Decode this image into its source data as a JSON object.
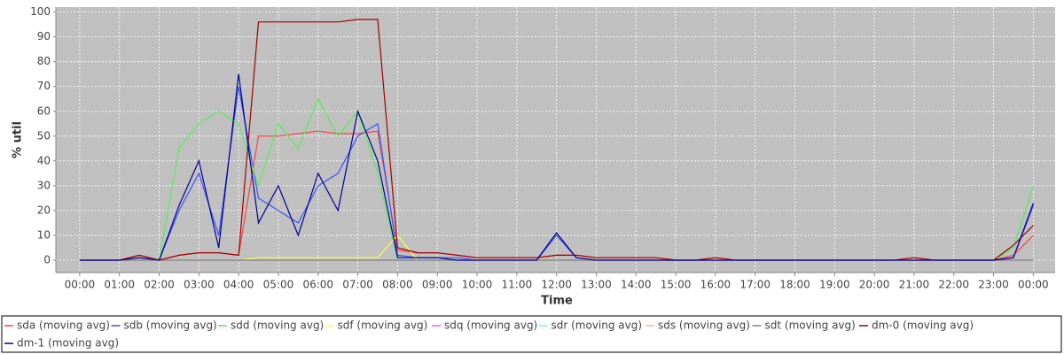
{
  "chart_data": {
    "type": "line",
    "x_label": "Time",
    "y_label": "% util",
    "x": [
      0,
      0.5,
      1,
      1.5,
      2,
      2.5,
      3,
      3.5,
      4,
      4.5,
      5,
      5.5,
      6,
      6.5,
      7,
      7.5,
      8,
      8.5,
      9,
      9.5,
      10,
      10.5,
      11,
      11.5,
      12,
      12.5,
      13,
      13.5,
      14,
      14.5,
      15,
      15.5,
      16,
      16.5,
      17,
      17.5,
      18,
      18.5,
      19,
      19.5,
      20,
      20.5,
      21,
      21.5,
      22,
      22.5,
      23,
      23.5,
      24
    ],
    "series": [
      {
        "name": "sda (moving avg)",
        "color": "#ff4040",
        "values": [
          0,
          0,
          0,
          2,
          0,
          2,
          3,
          3,
          2,
          50,
          50,
          51,
          52,
          51,
          51,
          52,
          4,
          3,
          3,
          2,
          1,
          1,
          1,
          1,
          2,
          2,
          1,
          1,
          1,
          1,
          0,
          0,
          1,
          0,
          0,
          0,
          0,
          0,
          0,
          0,
          0,
          0,
          1,
          0,
          0,
          0,
          0,
          2,
          10
        ]
      },
      {
        "name": "sdb (moving avg)",
        "color": "#3a50ff",
        "values": [
          0,
          0,
          0,
          1,
          0,
          20,
          35,
          10,
          70,
          25,
          20,
          15,
          30,
          35,
          50,
          55,
          2,
          1,
          1,
          1,
          0,
          0,
          0,
          0,
          10,
          1,
          0,
          0,
          0,
          0,
          0,
          0,
          0,
          0,
          0,
          0,
          0,
          0,
          0,
          0,
          0,
          0,
          0,
          0,
          0,
          0,
          0,
          1,
          22
        ]
      },
      {
        "name": "sdd (moving avg)",
        "color": "#55ee55",
        "values": [
          0,
          0,
          0,
          0,
          0,
          45,
          55,
          60,
          55,
          30,
          55,
          45,
          65,
          50,
          60,
          35,
          0,
          0,
          0,
          0,
          0,
          0,
          0,
          0,
          0,
          0,
          0,
          0,
          0,
          0,
          0,
          0,
          0,
          0,
          0,
          0,
          0,
          0,
          0,
          0,
          0,
          0,
          0,
          0,
          0,
          0,
          0,
          5,
          30
        ]
      },
      {
        "name": "sdf (moving avg)",
        "color": "#ffff40",
        "values": [
          0,
          0,
          0,
          0,
          0,
          0,
          0,
          0,
          0,
          1,
          1,
          1,
          1,
          1,
          1,
          1,
          10,
          0,
          0,
          0,
          0,
          0,
          0,
          0,
          0,
          0,
          0,
          0,
          0,
          0,
          0,
          0,
          0,
          0,
          0,
          0,
          0,
          0,
          0,
          0,
          0,
          0,
          0,
          0,
          0,
          0,
          0,
          0,
          0
        ]
      },
      {
        "name": "sdq (moving avg)",
        "color": "#ff55ff",
        "values": [
          0,
          0,
          0,
          0,
          0,
          0,
          0,
          0,
          0,
          0,
          0,
          0,
          0,
          0,
          0,
          0,
          0,
          0,
          0,
          0,
          0,
          0,
          0,
          0,
          0,
          0,
          0,
          0,
          0,
          0,
          0,
          0,
          0,
          0,
          0,
          0,
          0,
          0,
          0,
          0,
          0,
          0,
          0,
          0,
          0,
          0,
          0,
          0,
          0
        ]
      },
      {
        "name": "sdr (moving avg)",
        "color": "#55ffff",
        "values": [
          0,
          0,
          0,
          0,
          0,
          0,
          0,
          0,
          0,
          0,
          0,
          0,
          0,
          0,
          0,
          0,
          0,
          0,
          0,
          0,
          0,
          0,
          0,
          0,
          0,
          0,
          0,
          0,
          0,
          0,
          0,
          0,
          0,
          0,
          0,
          0,
          0,
          0,
          0,
          0,
          0,
          0,
          0,
          0,
          0,
          0,
          0,
          0,
          0
        ]
      },
      {
        "name": "sds (moving avg)",
        "color": "#ffafaf",
        "values": [
          0,
          0,
          0,
          0,
          0,
          0,
          0,
          0,
          0,
          0,
          0,
          0,
          0,
          0,
          0,
          0,
          0,
          0,
          0,
          0,
          0,
          0,
          0,
          0,
          0,
          0,
          0,
          0,
          0,
          0,
          0,
          0,
          0,
          0,
          0,
          0,
          0,
          0,
          0,
          0,
          0,
          0,
          0,
          0,
          0,
          0,
          0,
          0,
          0
        ]
      },
      {
        "name": "sdt (moving avg)",
        "color": "#808080",
        "values": [
          0,
          0,
          0,
          0,
          0,
          0,
          0,
          0,
          0,
          0,
          0,
          0,
          0,
          0,
          0,
          0,
          0,
          0,
          0,
          0,
          0,
          0,
          0,
          0,
          0,
          0,
          0,
          0,
          0,
          0,
          0,
          0,
          0,
          0,
          0,
          0,
          0,
          0,
          0,
          0,
          0,
          0,
          0,
          0,
          0,
          0,
          0,
          0,
          0
        ]
      },
      {
        "name": "dm-0 (moving avg)",
        "color": "#a00000",
        "values": [
          0,
          0,
          0,
          2,
          0,
          2,
          3,
          3,
          2,
          96,
          96,
          96,
          96,
          96,
          97,
          97,
          5,
          3,
          3,
          2,
          1,
          1,
          1,
          1,
          2,
          2,
          1,
          1,
          1,
          1,
          0,
          0,
          1,
          0,
          0,
          0,
          0,
          0,
          0,
          0,
          0,
          0,
          1,
          0,
          0,
          0,
          0,
          6,
          14
        ]
      },
      {
        "name": "dm-1 (moving avg)",
        "color": "#000090",
        "values": [
          0,
          0,
          0,
          1,
          0,
          22,
          40,
          5,
          75,
          15,
          30,
          10,
          35,
          20,
          60,
          40,
          1,
          1,
          1,
          0,
          0,
          0,
          0,
          0,
          11,
          1,
          0,
          0,
          0,
          0,
          0,
          0,
          0,
          0,
          0,
          0,
          0,
          0,
          0,
          0,
          0,
          0,
          0,
          0,
          0,
          0,
          0,
          1,
          23
        ]
      }
    ],
    "xlim": [
      -0.6,
      24.55
    ],
    "ylim": [
      -5,
      102
    ],
    "xticks": [
      {
        "value": 0,
        "label": "00:00"
      },
      {
        "value": 1,
        "label": "01:00"
      },
      {
        "value": 2,
        "label": "02:00"
      },
      {
        "value": 3,
        "label": "03:00"
      },
      {
        "value": 4,
        "label": "04:00"
      },
      {
        "value": 5,
        "label": "05:00"
      },
      {
        "value": 6,
        "label": "06:00"
      },
      {
        "value": 7,
        "label": "07:00"
      },
      {
        "value": 8,
        "label": "08:00"
      },
      {
        "value": 9,
        "label": "09:00"
      },
      {
        "value": 10,
        "label": "10:00"
      },
      {
        "value": 11,
        "label": "11:00"
      },
      {
        "value": 12,
        "label": "12:00"
      },
      {
        "value": 13,
        "label": "13:00"
      },
      {
        "value": 14,
        "label": "14:00"
      },
      {
        "value": 15,
        "label": "15:00"
      },
      {
        "value": 16,
        "label": "16:00"
      },
      {
        "value": 17,
        "label": "17:00"
      },
      {
        "value": 18,
        "label": "18:00"
      },
      {
        "value": 19,
        "label": "19:00"
      },
      {
        "value": 20,
        "label": "20:00"
      },
      {
        "value": 21,
        "label": "21:00"
      },
      {
        "value": 22,
        "label": "22:00"
      },
      {
        "value": 23,
        "label": "23:00"
      },
      {
        "value": 24,
        "label": "00:00"
      }
    ],
    "yticks": [
      0,
      10,
      20,
      30,
      40,
      50,
      60,
      70,
      80,
      90,
      100
    ],
    "grid": true,
    "legend": "bottom"
  }
}
